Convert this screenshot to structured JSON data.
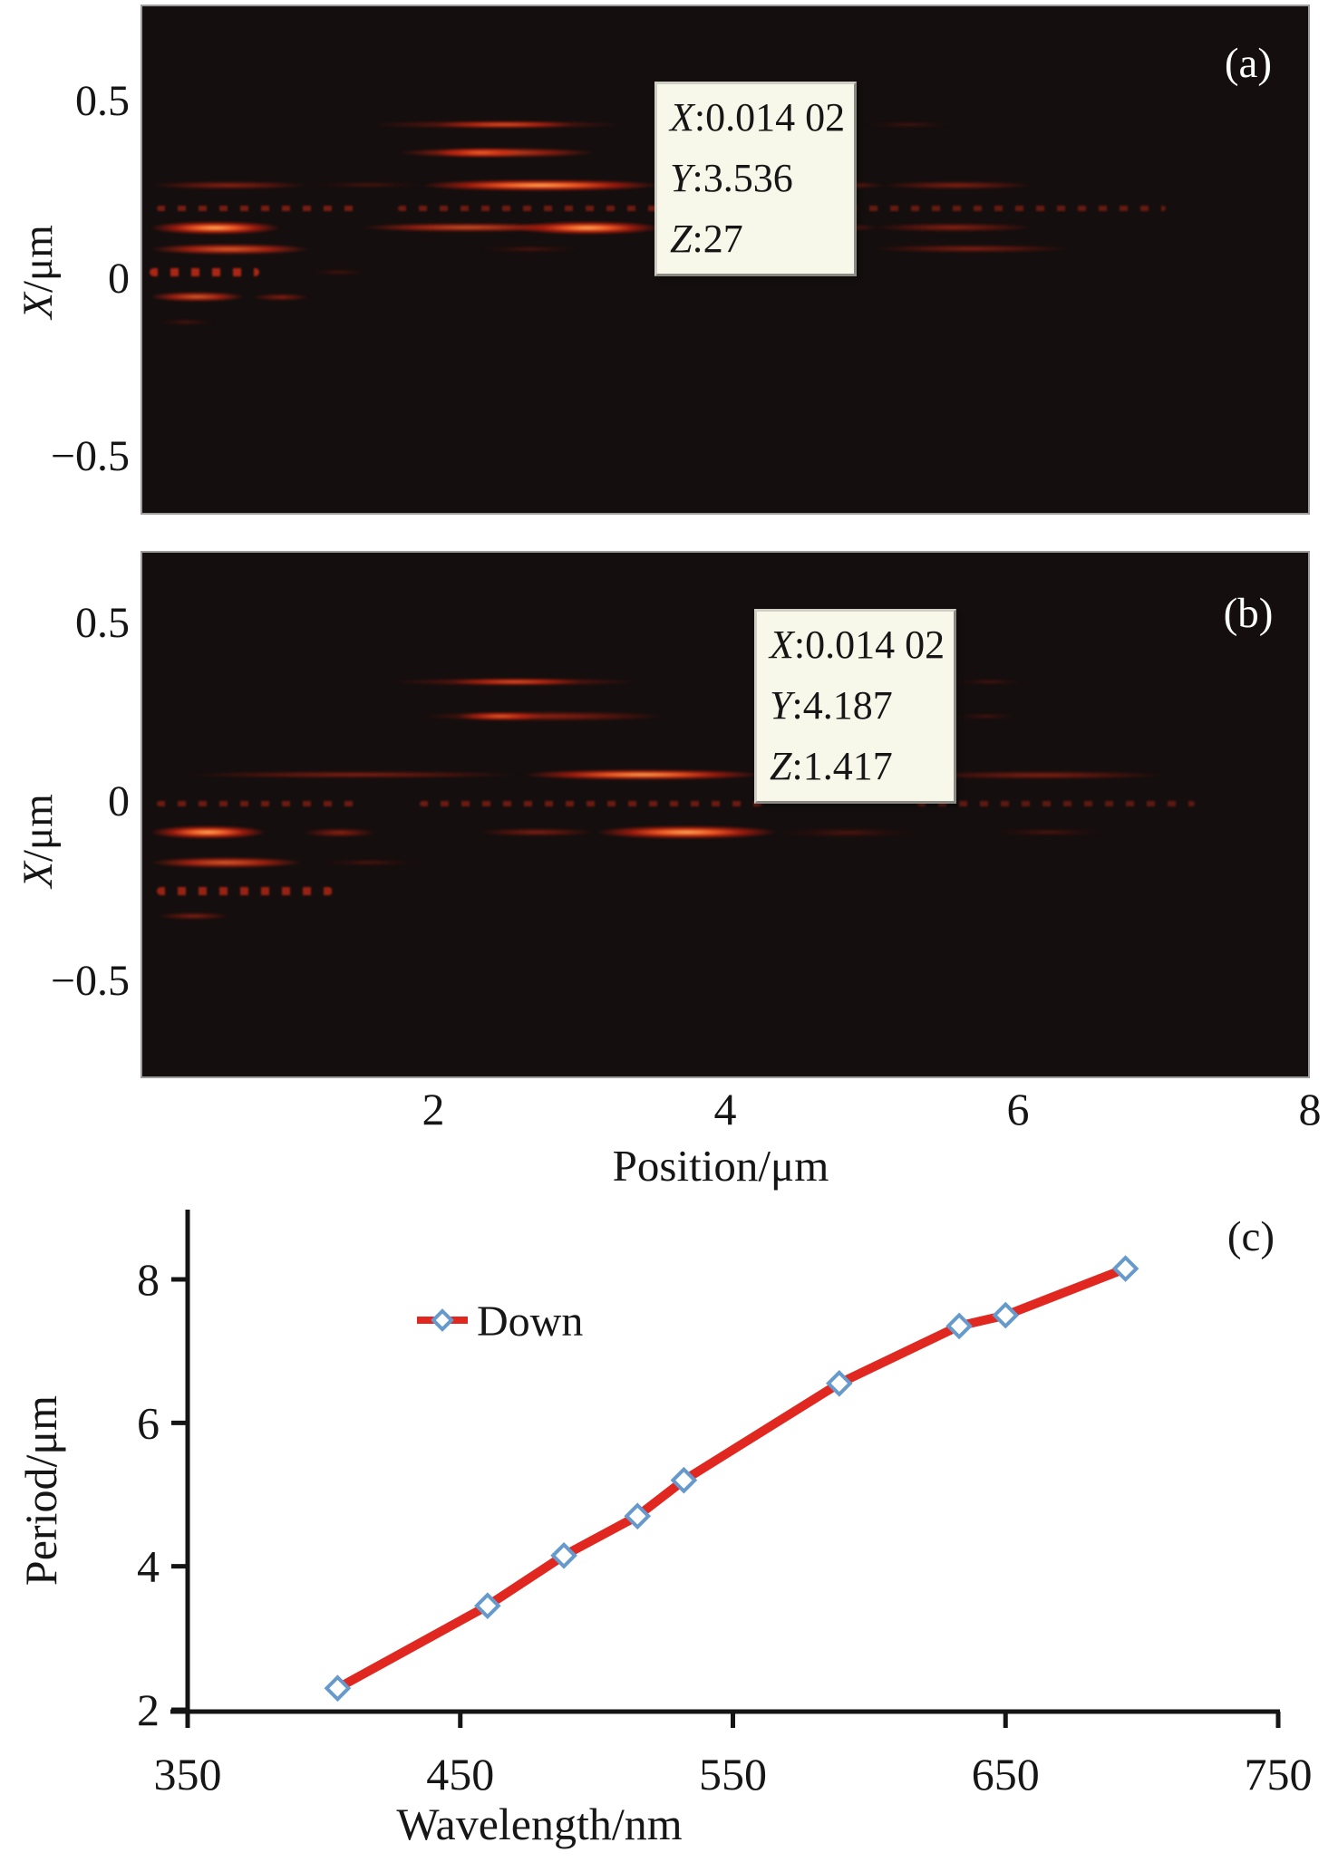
{
  "figure": {
    "panel_tags": {
      "a": "(a)",
      "b": "(b)",
      "c": "(c)"
    }
  },
  "heat_axis": {
    "x_label": "Position/μm",
    "x_ticks": [
      {
        "label": "2",
        "pos": 2
      },
      {
        "label": "4",
        "pos": 4
      },
      {
        "label": "6",
        "pos": 6
      },
      {
        "label": "8",
        "pos": 8
      }
    ],
    "y_label_var": "X",
    "y_label_rest": "/μm",
    "y_ticks": [
      {
        "label": "0.5",
        "v": 0.5
      },
      {
        "label": "0",
        "v": 0
      },
      {
        "label": "−0.5",
        "v": -0.5
      }
    ]
  },
  "tooltips": {
    "a": {
      "lines": [
        {
          "var": "X",
          "value": "0.014 02"
        },
        {
          "var": "Y",
          "value": "3.536"
        },
        {
          "var": "Z",
          "value": "27"
        }
      ]
    },
    "b": {
      "lines": [
        {
          "var": "X",
          "value": "0.014 02"
        },
        {
          "var": "Y",
          "value": "4.187"
        },
        {
          "var": "Z",
          "value": "1.417"
        }
      ]
    }
  },
  "chart_data": [
    {
      "type": "heatmap",
      "panel": "a",
      "xlabel": "Position/μm",
      "ylabel": "X/μm",
      "xlim": [
        0,
        8
      ],
      "ylim": [
        -0.68,
        0.77
      ],
      "colormap": "black-red-orange",
      "cursor_readout": {
        "X": "0.014 02",
        "Y": "3.536",
        "Z": "27"
      },
      "streaks": [
        [
          1.55,
          3.3,
          0.44,
          9,
          0.5,
          0
        ],
        [
          2.0,
          2.95,
          0.44,
          7,
          0.75,
          0
        ],
        [
          1.75,
          3.1,
          0.36,
          11,
          0.7,
          0
        ],
        [
          2.0,
          2.62,
          0.36,
          9,
          0.92,
          0
        ],
        [
          0.05,
          1.15,
          0.27,
          9,
          0.6,
          0
        ],
        [
          1.15,
          1.95,
          0.27,
          8,
          0.35,
          0
        ],
        [
          1.9,
          3.55,
          0.27,
          13,
          1.0,
          0
        ],
        [
          3.5,
          5.1,
          0.27,
          11,
          0.8,
          0
        ],
        [
          5.05,
          6.1,
          0.27,
          9,
          0.5,
          0
        ],
        [
          0.1,
          1.45,
          0.205,
          6,
          0.5,
          1
        ],
        [
          1.75,
          3.55,
          0.205,
          6,
          0.45,
          1
        ],
        [
          4.4,
          7.0,
          0.205,
          6,
          0.4,
          1
        ],
        [
          0.05,
          0.95,
          0.15,
          15,
          1.0,
          0
        ],
        [
          1.5,
          2.95,
          0.15,
          10,
          0.7,
          0
        ],
        [
          2.55,
          3.55,
          0.15,
          15,
          1.0,
          0
        ],
        [
          3.5,
          5.05,
          0.15,
          12,
          0.85,
          0
        ],
        [
          5.0,
          6.1,
          0.15,
          10,
          0.55,
          0
        ],
        [
          0.05,
          1.15,
          0.09,
          12,
          0.9,
          0
        ],
        [
          2.3,
          3.0,
          0.09,
          8,
          0.4,
          0
        ],
        [
          5.0,
          6.35,
          0.09,
          9,
          0.45,
          0
        ],
        [
          0.05,
          0.8,
          0.025,
          9,
          0.8,
          1
        ],
        [
          1.15,
          1.55,
          0.025,
          7,
          0.35,
          0
        ],
        [
          0.05,
          0.7,
          -0.045,
          11,
          0.85,
          0
        ],
        [
          0.75,
          1.15,
          -0.045,
          8,
          0.5,
          0
        ],
        [
          0.1,
          0.5,
          -0.115,
          7,
          0.4,
          0
        ],
        [
          4.95,
          5.55,
          0.44,
          7,
          0.3,
          0
        ]
      ]
    },
    {
      "type": "heatmap",
      "panel": "b",
      "xlabel": "Position/μm",
      "ylabel": "X/μm",
      "xlim": [
        0,
        8
      ],
      "ylim": [
        -0.77,
        0.7
      ],
      "colormap": "black-red-orange",
      "cursor_readout": {
        "X": "0.014 02",
        "Y": "4.187",
        "Z": "1.417"
      },
      "streaks": [
        [
          1.7,
          3.4,
          0.34,
          9,
          0.5,
          0
        ],
        [
          2.1,
          3.0,
          0.34,
          7,
          0.7,
          0
        ],
        [
          1.9,
          3.6,
          0.245,
          11,
          0.65,
          0
        ],
        [
          2.15,
          2.75,
          0.245,
          9,
          0.85,
          0
        ],
        [
          5.55,
          6.0,
          0.245,
          7,
          0.3,
          0
        ],
        [
          0.3,
          2.6,
          0.08,
          8,
          0.5,
          0
        ],
        [
          2.6,
          4.25,
          0.08,
          12,
          0.95,
          0
        ],
        [
          4.25,
          5.3,
          0.08,
          10,
          0.6,
          0
        ],
        [
          5.3,
          7.0,
          0.08,
          9,
          0.5,
          0
        ],
        [
          0.1,
          1.5,
          0.0,
          6,
          0.45,
          1
        ],
        [
          1.9,
          4.3,
          0.0,
          6,
          0.45,
          1
        ],
        [
          5.3,
          7.2,
          0.0,
          6,
          0.35,
          1
        ],
        [
          0.05,
          0.85,
          -0.08,
          15,
          1.0,
          0
        ],
        [
          1.1,
          1.6,
          -0.08,
          10,
          0.6,
          0
        ],
        [
          2.3,
          3.1,
          -0.08,
          9,
          0.45,
          0
        ],
        [
          3.1,
          4.35,
          -0.08,
          15,
          1.0,
          0
        ],
        [
          4.35,
          5.3,
          -0.08,
          12,
          0.4,
          0
        ],
        [
          5.8,
          6.6,
          -0.08,
          9,
          0.4,
          0
        ],
        [
          0.05,
          1.1,
          -0.165,
          12,
          0.85,
          0
        ],
        [
          1.2,
          1.9,
          -0.165,
          8,
          0.4,
          0
        ],
        [
          0.1,
          1.3,
          -0.245,
          9,
          0.7,
          1
        ],
        [
          0.1,
          0.6,
          -0.315,
          8,
          0.45,
          0
        ],
        [
          5.55,
          6.05,
          0.34,
          7,
          0.3,
          0
        ]
      ]
    },
    {
      "type": "line",
      "panel": "c",
      "xlabel": "Wavelength/nm",
      "ylabel": "Period/μm",
      "xlim": [
        350,
        750
      ],
      "ylim": [
        2,
        8.8
      ],
      "x_ticks": [
        350,
        450,
        550,
        650,
        750
      ],
      "y_ticks": [
        2,
        4,
        6,
        8
      ],
      "legend": {
        "label": "Down",
        "marker": "open-diamond",
        "position": "upper-left-inside"
      },
      "line_color": "#e02820",
      "marker_stroke": "#6699cc",
      "series": [
        {
          "name": "Down",
          "x": [
            405,
            460,
            488,
            515,
            532,
            589,
            633,
            650,
            694
          ],
          "y": [
            2.3,
            3.45,
            4.15,
            4.7,
            5.2,
            6.55,
            7.35,
            7.5,
            8.15
          ]
        }
      ]
    }
  ]
}
